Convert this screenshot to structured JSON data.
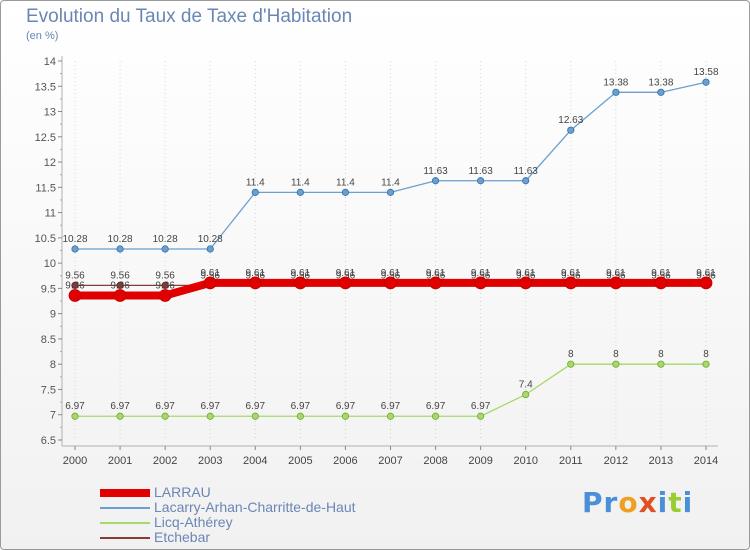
{
  "chart_data": {
    "type": "line",
    "title": "Evolution du Taux de Taxe d'Habitation",
    "subtitle": "(en %)",
    "x": [
      2000,
      2001,
      2002,
      2003,
      2004,
      2005,
      2006,
      2007,
      2008,
      2009,
      2010,
      2011,
      2012,
      2013,
      2014
    ],
    "x_tick_labels": [
      "2000",
      "2001",
      "2002",
      "2003",
      "2004",
      "2005",
      "2006",
      "2007",
      "2008",
      "2009",
      "2010",
      "2011",
      "2012",
      "2013",
      "2014"
    ],
    "ylim": [
      6.5,
      14
    ],
    "y_ticks": [
      6.5,
      7,
      7.5,
      8,
      8.5,
      9,
      9.5,
      10,
      10.5,
      11,
      11.5,
      12,
      12.5,
      13,
      13.5,
      14
    ],
    "y_tick_labels": [
      "6.5",
      "7",
      "7.5",
      "8",
      "8.5",
      "9",
      "9.5",
      "10",
      "10.5",
      "11",
      "11.5",
      "12",
      "12.5",
      "13",
      "13.5",
      "14"
    ],
    "grid": "vertical",
    "legend_position": "bottom-left",
    "series": [
      {
        "name": "LARRAU",
        "color": "#e00000",
        "values": [
          9.36,
          9.36,
          9.36,
          9.61,
          9.61,
          9.61,
          9.61,
          9.61,
          9.61,
          9.61,
          9.61,
          9.61,
          9.61,
          9.61,
          9.61
        ],
        "labels": [
          "9.36",
          "9.36",
          "9.36",
          "9.61",
          "9.61",
          "9.61",
          "9.61",
          "9.61",
          "9.61",
          "9.61",
          "9.61",
          "9.61",
          "9.61",
          "9.61",
          "9.61"
        ]
      },
      {
        "name": "Lacarry-Arhan-Charritte-de-Haut",
        "color": "#6a9fd0",
        "values": [
          10.28,
          10.28,
          10.28,
          10.28,
          11.4,
          11.4,
          11.4,
          11.4,
          11.63,
          11.63,
          11.63,
          12.63,
          13.38,
          13.38,
          13.58
        ],
        "labels": [
          "10.28",
          "10.28",
          "10.28",
          "10.28",
          "11.4",
          "11.4",
          "11.4",
          "11.4",
          "11.63",
          "11.63",
          "11.63",
          "12.63",
          "13.38",
          "13.38",
          "13.58"
        ]
      },
      {
        "name": "Licq-Athérey",
        "color": "#a6d86a",
        "values": [
          6.97,
          6.97,
          6.97,
          6.97,
          6.97,
          6.97,
          6.97,
          6.97,
          6.97,
          6.97,
          7.4,
          8,
          8,
          8,
          8
        ],
        "labels": [
          "6.97",
          "6.97",
          "6.97",
          "6.97",
          "6.97",
          "6.97",
          "6.97",
          "6.97",
          "6.97",
          "6.97",
          "7.4",
          "8",
          "8",
          "8",
          "8"
        ]
      },
      {
        "name": "Etchebar",
        "color": "#8b3a3a",
        "values": [
          9.56,
          9.56,
          9.56,
          9.56,
          9.56,
          9.56,
          9.56,
          9.56,
          9.56,
          9.56,
          9.56,
          9.56,
          9.56,
          9.56,
          9.56
        ],
        "labels": [
          "9.56",
          "9.56",
          "9.56",
          "9.56",
          "9.56",
          "9.56",
          "9.56",
          "9.56",
          "9.56",
          "9.56",
          "9.56",
          "9.56",
          "9.56",
          "9.56",
          "9.56"
        ]
      }
    ]
  },
  "brand": {
    "letters": [
      "P",
      "r",
      "o",
      "x",
      "i",
      "t",
      "i"
    ],
    "colors": [
      "#4a90d9",
      "#4a90d9",
      "#f0a020",
      "#e05020",
      "#4a90d9",
      "#9acd32",
      "#4a90d9"
    ]
  }
}
